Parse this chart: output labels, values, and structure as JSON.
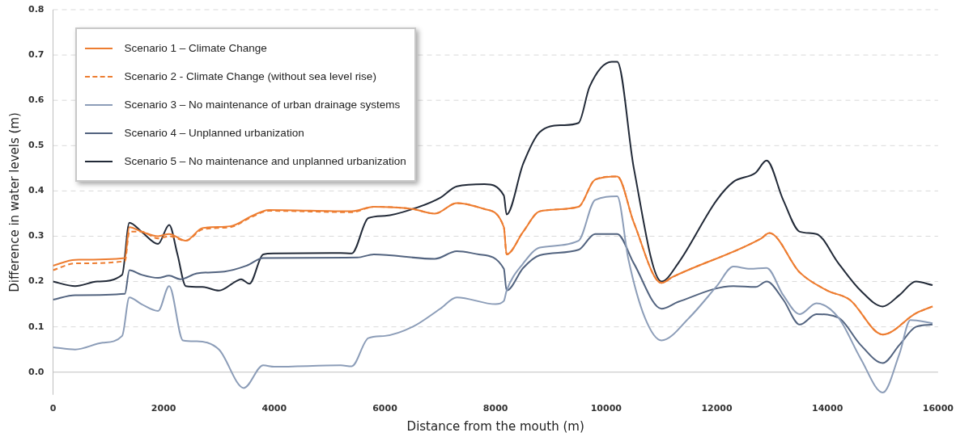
{
  "chart_data": {
    "type": "line",
    "xlabel": "Distance from the mouth (m)",
    "ylabel": "Difference in water levels (m)",
    "xlim": [
      0,
      16000
    ],
    "xticks": [
      0,
      2000,
      4000,
      6000,
      8000,
      10000,
      12000,
      14000,
      16000
    ],
    "ylim": [
      -0.05,
      0.8
    ],
    "yticks": [
      {
        "value": 0,
        "label": "0.0"
      },
      0.1,
      0.2,
      0.3,
      0.4,
      0.5,
      0.6,
      0.7,
      0.8
    ],
    "grid": "y",
    "legend": "top left",
    "marker": "none",
    "series": [
      {
        "name": "Scenario 1 – Climate Change",
        "color": "#ed7d31",
        "line_style": "solid",
        "x": [
          0,
          400,
          1300,
          1380,
          1600,
          1900,
          2100,
          2400,
          2700,
          3200,
          3600,
          3900,
          5400,
          5800,
          6500,
          6900,
          7300,
          7800,
          8150,
          8200,
          8500,
          8800,
          9500,
          9800,
          10200,
          10500,
          11000,
          11200,
          12800,
          12950,
          13500,
          14000,
          14400,
          15000,
          15600,
          15900
        ],
        "values": [
          0.235,
          0.248,
          0.252,
          0.32,
          0.31,
          0.3,
          0.305,
          0.29,
          0.318,
          0.322,
          0.345,
          0.358,
          0.355,
          0.365,
          0.36,
          0.35,
          0.373,
          0.36,
          0.32,
          0.26,
          0.31,
          0.355,
          0.365,
          0.425,
          0.432,
          0.33,
          0.197,
          0.21,
          0.295,
          0.307,
          0.22,
          0.18,
          0.16,
          0.083,
          0.13,
          0.145
        ]
      },
      {
        "name": "Scenario 2 - Climate Change (without sea level rise)",
        "color": "#ed7d31",
        "line_style": "dashed",
        "x": [
          0,
          400,
          1300,
          1380,
          1600,
          1900,
          2100,
          2400,
          2700,
          3200,
          3600,
          3900,
          5400,
          5800,
          6500,
          6900,
          7300,
          7800,
          8150,
          8200,
          8500,
          8800,
          9500,
          9800,
          10200,
          10500,
          11000,
          11200,
          12800,
          12950,
          13500,
          14000,
          14400,
          15000,
          15600,
          15900
        ],
        "values": [
          0.225,
          0.24,
          0.245,
          0.31,
          0.31,
          0.295,
          0.3,
          0.29,
          0.315,
          0.32,
          0.343,
          0.356,
          0.353,
          0.365,
          0.36,
          0.35,
          0.373,
          0.36,
          0.32,
          0.26,
          0.31,
          0.355,
          0.365,
          0.425,
          0.432,
          0.33,
          0.197,
          0.21,
          0.295,
          0.307,
          0.22,
          0.18,
          0.16,
          0.083,
          0.13,
          0.145
        ]
      },
      {
        "name": "Scenario 3 – No maintenance of urban drainage systems",
        "color": "#8c9db8",
        "line_style": "solid",
        "x": [
          0,
          400,
          900,
          1250,
          1380,
          1600,
          1900,
          2100,
          2350,
          2600,
          3000,
          3450,
          3800,
          4000,
          5200,
          5400,
          5700,
          6000,
          6500,
          7000,
          7300,
          8000,
          8150,
          8200,
          8500,
          8800,
          9500,
          9800,
          10200,
          10400,
          10700,
          11000,
          11500,
          12000,
          12300,
          12600,
          12900,
          13200,
          13500,
          13800,
          14200,
          14600,
          15000,
          15300,
          15500,
          15900
        ],
        "values": [
          0.055,
          0.05,
          0.065,
          0.08,
          0.165,
          0.15,
          0.135,
          0.19,
          0.07,
          0.068,
          0.05,
          -0.035,
          0.015,
          0.012,
          0.015,
          0.013,
          0.075,
          0.08,
          0.1,
          0.14,
          0.165,
          0.15,
          0.157,
          0.18,
          0.24,
          0.275,
          0.29,
          0.38,
          0.388,
          0.25,
          0.12,
          0.07,
          0.12,
          0.19,
          0.233,
          0.228,
          0.23,
          0.17,
          0.128,
          0.152,
          0.12,
          0.03,
          -0.045,
          0.04,
          0.115,
          0.108
        ]
      },
      {
        "name": "Scenario 4 – Unplanned urbanization",
        "color": "#52637f",
        "line_style": "solid",
        "x": [
          0,
          400,
          1300,
          1380,
          1600,
          1900,
          2100,
          2300,
          2600,
          3100,
          3500,
          3800,
          5500,
          5800,
          6900,
          7300,
          7700,
          8150,
          8200,
          8500,
          8800,
          9500,
          9800,
          10200,
          10500,
          11000,
          11300,
          12300,
          12700,
          12900,
          13200,
          13500,
          13800,
          14200,
          14600,
          15000,
          15300,
          15600,
          15900
        ],
        "values": [
          0.16,
          0.17,
          0.173,
          0.225,
          0.215,
          0.208,
          0.213,
          0.205,
          0.218,
          0.222,
          0.235,
          0.252,
          0.253,
          0.26,
          0.25,
          0.267,
          0.26,
          0.228,
          0.18,
          0.23,
          0.258,
          0.27,
          0.305,
          0.305,
          0.24,
          0.14,
          0.155,
          0.19,
          0.188,
          0.2,
          0.16,
          0.105,
          0.128,
          0.12,
          0.06,
          0.02,
          0.06,
          0.1,
          0.105
        ]
      },
      {
        "name": "Scenario 5 – No maintenance and unplanned urbanization",
        "color": "#222a38",
        "line_style": "solid",
        "x": [
          0,
          400,
          800,
          1250,
          1380,
          1600,
          1900,
          2100,
          2250,
          2400,
          2700,
          3000,
          3300,
          3400,
          3550,
          3800,
          4000,
          5200,
          5400,
          5700,
          6000,
          6500,
          7000,
          7300,
          7800,
          8150,
          8200,
          8500,
          8800,
          9200,
          9500,
          9700,
          10100,
          10200,
          10500,
          11000,
          11300,
          12000,
          12300,
          12700,
          12900,
          13200,
          13500,
          13800,
          14200,
          14600,
          15000,
          15300,
          15600,
          15900
        ],
        "values": [
          0.2,
          0.19,
          0.2,
          0.215,
          0.33,
          0.31,
          0.283,
          0.325,
          0.26,
          0.19,
          0.188,
          0.18,
          0.2,
          0.205,
          0.195,
          0.26,
          0.262,
          0.263,
          0.262,
          0.34,
          0.345,
          0.36,
          0.385,
          0.41,
          0.415,
          0.39,
          0.348,
          0.46,
          0.53,
          0.545,
          0.55,
          0.63,
          0.685,
          0.685,
          0.45,
          0.2,
          0.24,
          0.38,
          0.42,
          0.44,
          0.467,
          0.38,
          0.31,
          0.305,
          0.24,
          0.18,
          0.145,
          0.17,
          0.2,
          0.192
        ]
      }
    ]
  }
}
